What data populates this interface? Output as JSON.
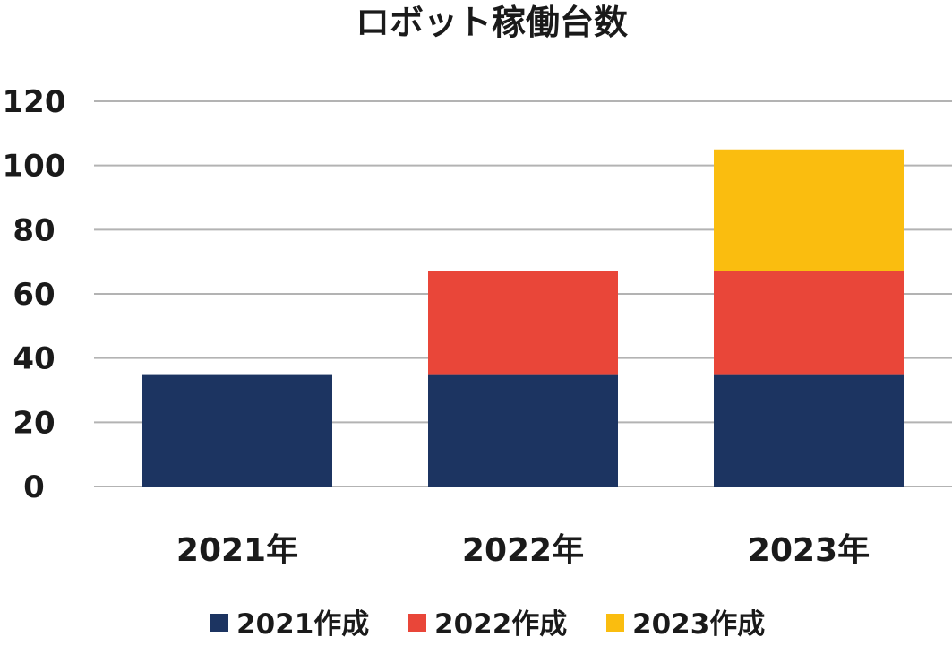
{
  "chart_data": {
    "type": "bar",
    "stacked": true,
    "title": "ロボット稼働台数",
    "xlabel": "",
    "ylabel": "",
    "categories": [
      "2021年",
      "2022年",
      "2023年"
    ],
    "series": [
      {
        "name": "2021作成",
        "values": [
          35,
          35,
          35
        ],
        "color": "#1c3461"
      },
      {
        "name": "2022作成",
        "values": [
          0,
          32,
          32
        ],
        "color": "#e94639"
      },
      {
        "name": "2023作成",
        "values": [
          0,
          0,
          38
        ],
        "color": "#fabd0f"
      }
    ],
    "ylim": [
      0,
      120
    ],
    "yticks": [
      0,
      20,
      40,
      60,
      80,
      100,
      120
    ],
    "grid": true,
    "legend_position": "bottom"
  }
}
